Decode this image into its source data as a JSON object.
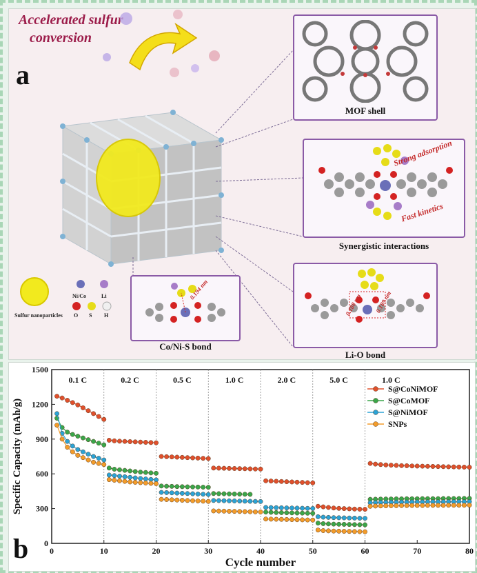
{
  "panel_a": {
    "letter": "a",
    "header_line1": "Accelerated sulfur",
    "header_line2": "conversion",
    "captions": {
      "mof_shell": "MOF shell",
      "synergistic": "Synergistic interactions",
      "co_ni_s": "Co/Ni-S bond",
      "li_o": "Li-O bond"
    },
    "annotations": {
      "strong_adsorption": "Strong adsorption",
      "fast_kinetics": "Fast kinetics",
      "dist_cos": "0.194 nm",
      "dist_lio_1": "0.188 nm",
      "dist_lio_2": "0.189 nm"
    },
    "legend": {
      "sulfur": "Sulfur nanoparticles",
      "ni_co": "Ni/Co",
      "li": "Li",
      "o": "O",
      "s": "S",
      "h": "H"
    },
    "colors": {
      "accent": "#9c1c4a",
      "box_border": "#8a5aa6",
      "sulfur": "#f2ea1e",
      "metal": "#6a6fb8",
      "li": "#a77cc8",
      "oxygen": "#d42222",
      "hydrogen": "#f0f0f0",
      "carbon": "#8e8e8e"
    }
  },
  "panel_b": {
    "letter": "b"
  },
  "chart_data": {
    "type": "line",
    "xlabel": "Cycle number",
    "ylabel": "Specific Capacity (mAh/g)",
    "xlim": [
      0,
      80
    ],
    "ylim": [
      0,
      1500
    ],
    "xticks": [
      0,
      10,
      20,
      30,
      40,
      50,
      60,
      70,
      80
    ],
    "yticks": [
      0,
      300,
      600,
      900,
      1200,
      1500
    ],
    "rate_labels": [
      {
        "label": "0.1 C",
        "from": 0,
        "to": 10
      },
      {
        "label": "0.2 C",
        "from": 10,
        "to": 20
      },
      {
        "label": "0.5 C",
        "from": 20,
        "to": 30
      },
      {
        "label": "1.0 C",
        "from": 30,
        "to": 40
      },
      {
        "label": "2.0 C",
        "from": 40,
        "to": 50
      },
      {
        "label": "5.0 C",
        "from": 50,
        "to": 60
      },
      {
        "label": "1.0 C",
        "from": 60,
        "to": 70
      }
    ],
    "dividers": [
      10,
      20,
      30,
      40,
      50,
      60
    ],
    "legend_position": "top-right",
    "series": [
      {
        "name": "S@CoNiMOF",
        "color": "#e0502c",
        "segments": [
          {
            "x": [
              1,
              2,
              3,
              4,
              5,
              6,
              7,
              8,
              9,
              10
            ],
            "y": [
              1270,
              1255,
              1235,
              1215,
              1195,
              1170,
              1145,
              1120,
              1095,
              1070
            ]
          },
          {
            "x": [
              11,
              12,
              13,
              14,
              15,
              16,
              17,
              18,
              19,
              20
            ],
            "y": [
              890,
              885,
              882,
              880,
              878,
              876,
              874,
              872,
              870,
              868
            ]
          },
          {
            "x": [
              21,
              22,
              23,
              24,
              25,
              26,
              27,
              28,
              29,
              30
            ],
            "y": [
              750,
              748,
              746,
              744,
              742,
              740,
              738,
              736,
              734,
              732
            ]
          },
          {
            "x": [
              31,
              32,
              33,
              34,
              35,
              36,
              37,
              38,
              39,
              40
            ],
            "y": [
              650,
              649,
              648,
              647,
              646,
              645,
              644,
              643,
              642,
              641
            ]
          },
          {
            "x": [
              41,
              42,
              43,
              44,
              45,
              46,
              47,
              48,
              49,
              50
            ],
            "y": [
              540,
              538,
              536,
              534,
              532,
              530,
              528,
              526,
              524,
              522
            ]
          },
          {
            "x": [
              51,
              52,
              53,
              54,
              55,
              56,
              57,
              58,
              59,
              60
            ],
            "y": [
              320,
              315,
              310,
              305,
              302,
              300,
              298,
              296,
              295,
              294
            ]
          },
          {
            "x": [
              61,
              62,
              63,
              64,
              65,
              66,
              67,
              68,
              69,
              70,
              71,
              72,
              73,
              74,
              75,
              76,
              77,
              78,
              79,
              80
            ],
            "y": [
              690,
              684,
              680,
              677,
              675,
              673,
              671,
              670,
              668,
              667,
              666,
              665,
              664,
              663,
              662,
              661,
              660,
              659,
              658,
              657
            ]
          }
        ]
      },
      {
        "name": "S@CoMOF",
        "color": "#3aa64a",
        "segments": [
          {
            "x": [
              1,
              2,
              3,
              4,
              5,
              6,
              7,
              8,
              9,
              10
            ],
            "y": [
              1080,
              1000,
              960,
              940,
              925,
              910,
              895,
              880,
              865,
              850
            ]
          },
          {
            "x": [
              11,
              12,
              13,
              14,
              15,
              16,
              17,
              18,
              19,
              20
            ],
            "y": [
              650,
              640,
              635,
              630,
              625,
              620,
              615,
              612,
              608,
              605
            ]
          },
          {
            "x": [
              21,
              22,
              23,
              24,
              25,
              26,
              27,
              28,
              29,
              30
            ],
            "y": [
              495,
              493,
              492,
              490,
              489,
              488,
              487,
              486,
              485,
              484
            ]
          },
          {
            "x": [
              31,
              32,
              33,
              34,
              35,
              36,
              37,
              38
            ],
            "y": [
              430,
              429,
              428,
              427,
              426,
              425,
              424,
              423
            ]
          },
          {
            "x": [
              41,
              42,
              43,
              44,
              45,
              46,
              47,
              48,
              49,
              50
            ],
            "y": [
              270,
              268,
              266,
              265,
              264,
              263,
              262,
              261,
              260,
              259
            ]
          },
          {
            "x": [
              51,
              52,
              53,
              54,
              55,
              56,
              57,
              58,
              59,
              60
            ],
            "y": [
              175,
              170,
              168,
              166,
              165,
              164,
              163,
              162,
              161,
              160
            ]
          },
          {
            "x": [
              61,
              62,
              63,
              64,
              65,
              66,
              67,
              68,
              69,
              70,
              71,
              72,
              73,
              74,
              75,
              76,
              77,
              78,
              79,
              80
            ],
            "y": [
              380,
              381,
              382,
              383,
              383,
              384,
              384,
              385,
              385,
              385,
              386,
              386,
              386,
              386,
              387,
              387,
              387,
              387,
              388,
              388
            ]
          }
        ]
      },
      {
        "name": "S@NiMOF",
        "color": "#2ba3d6",
        "segments": [
          {
            "x": [
              1,
              2,
              3,
              4,
              5,
              6,
              7,
              8,
              9,
              10
            ],
            "y": [
              1120,
              950,
              880,
              840,
              810,
              790,
              770,
              750,
              735,
              720
            ]
          },
          {
            "x": [
              11,
              12,
              13,
              14,
              15,
              16,
              17,
              18,
              19,
              20
            ],
            "y": [
              590,
              585,
              580,
              575,
              570,
              565,
              560,
              556,
              552,
              548
            ]
          },
          {
            "x": [
              21,
              22,
              23,
              24,
              25,
              26,
              27,
              28,
              29,
              30
            ],
            "y": [
              440,
              438,
              436,
              434,
              432,
              430,
              428,
              426,
              424,
              422
            ]
          },
          {
            "x": [
              31,
              32,
              33,
              34,
              35,
              36,
              37,
              38,
              39,
              40
            ],
            "y": [
              370,
              369,
              368,
              367,
              366,
              365,
              364,
              363,
              362,
              361
            ]
          },
          {
            "x": [
              41,
              42,
              43,
              44,
              45,
              46,
              47,
              48,
              49,
              50
            ],
            "y": [
              310,
              309,
              308,
              307,
              306,
              305,
              304,
              303,
              302,
              301
            ]
          },
          {
            "x": [
              51,
              52,
              53,
              54,
              55,
              56,
              57,
              58,
              59,
              60
            ],
            "y": [
              230,
              226,
              224,
              222,
              221,
              220,
              219,
              218,
              217,
              216
            ]
          },
          {
            "x": [
              61,
              62,
              63,
              64,
              65,
              66,
              67,
              68,
              69,
              70,
              71,
              72,
              73,
              74,
              75,
              76,
              77,
              78,
              79,
              80
            ],
            "y": [
              350,
              352,
              353,
              354,
              355,
              355,
              356,
              356,
              357,
              357,
              357,
              358,
              358,
              358,
              358,
              359,
              359,
              359,
              359,
              360
            ]
          }
        ]
      },
      {
        "name": "SNPs",
        "color": "#f39c2a",
        "segments": [
          {
            "x": [
              1,
              2,
              3,
              4,
              5,
              6,
              7,
              8,
              9,
              10
            ],
            "y": [
              1020,
              900,
              830,
              790,
              760,
              740,
              720,
              700,
              690,
              680
            ]
          },
          {
            "x": [
              11,
              12,
              13,
              14,
              15,
              16,
              17,
              18,
              19,
              20
            ],
            "y": [
              550,
              545,
              540,
              535,
              530,
              527,
              524,
              521,
              518,
              515
            ]
          },
          {
            "x": [
              21,
              22,
              23,
              24,
              25,
              26,
              27,
              28,
              29,
              30
            ],
            "y": [
              380,
              378,
              376,
              374,
              372,
              370,
              368,
              366,
              364,
              362
            ]
          },
          {
            "x": [
              31,
              32,
              33,
              34,
              35,
              36,
              37,
              38,
              39,
              40
            ],
            "y": [
              280,
              279,
              278,
              277,
              276,
              275,
              274,
              273,
              272,
              271
            ]
          },
          {
            "x": [
              41,
              42,
              43,
              44,
              45,
              46,
              47,
              48,
              49,
              50
            ],
            "y": [
              210,
              209,
              208,
              207,
              206,
              205,
              204,
              203,
              202,
              201
            ]
          },
          {
            "x": [
              51,
              52,
              53,
              54,
              55,
              56,
              57,
              58,
              59,
              60
            ],
            "y": [
              115,
              110,
              108,
              106,
              105,
              104,
              103,
              102,
              101,
              100
            ]
          },
          {
            "x": [
              61,
              62,
              63,
              64,
              65,
              66,
              67,
              68,
              69,
              70,
              71,
              72,
              73,
              74,
              75,
              76,
              77,
              78,
              79,
              80
            ],
            "y": [
              320,
              322,
              323,
              324,
              325,
              325,
              326,
              326,
              327,
              327,
              327,
              328,
              328,
              328,
              328,
              329,
              329,
              329,
              329,
              330
            ]
          }
        ]
      }
    ]
  }
}
